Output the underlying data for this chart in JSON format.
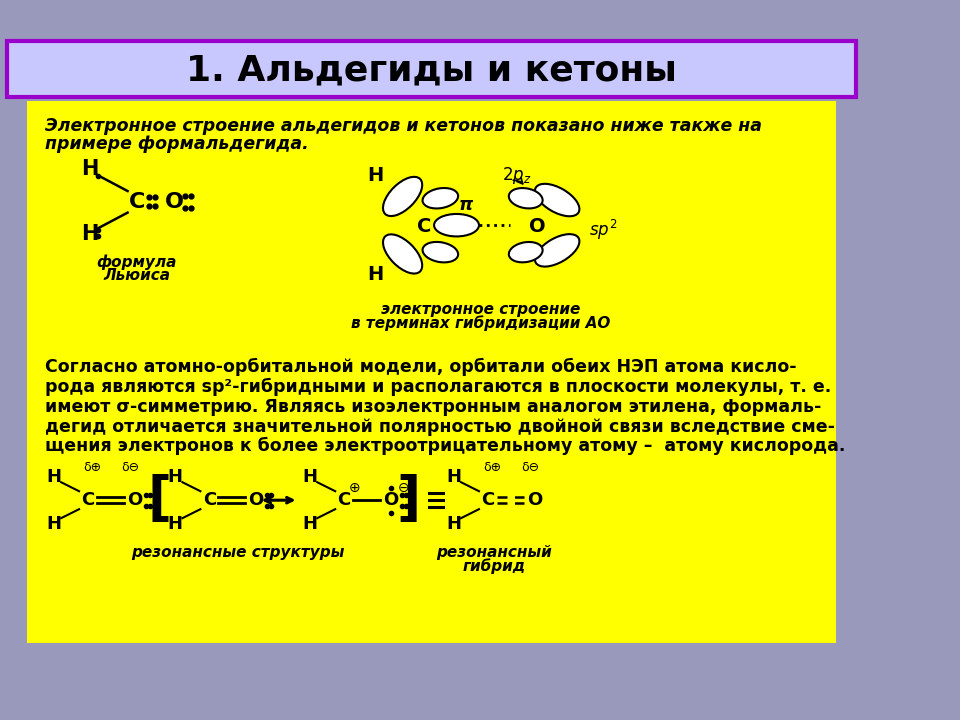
{
  "title": "1. Альдегиды и кетоны",
  "title_bg": "#c8c8ff",
  "title_border": "#9900cc",
  "content_bg": "#ffff00",
  "outer_bg": "#9999bb",
  "para1_lines": [
    "Электронное строение альдегидов и кетонов показано ниже также на",
    "примере формальдегида."
  ],
  "para2_lines": [
    "Согласно атомно-орбитальной модели, орбитали обеих НЭП атома кисло-",
    "рода являются sp²-гибридными и располагаются в плоскости молекулы, т. е.",
    "имеют σ-симметрию. Являясь изоэлектронным аналогом этилена, формаль-",
    "дегид отличается значительной полярностью двойной связи вследствие сме-",
    "щения электронов к более электроотрицательному атому –  атому кислорода."
  ]
}
